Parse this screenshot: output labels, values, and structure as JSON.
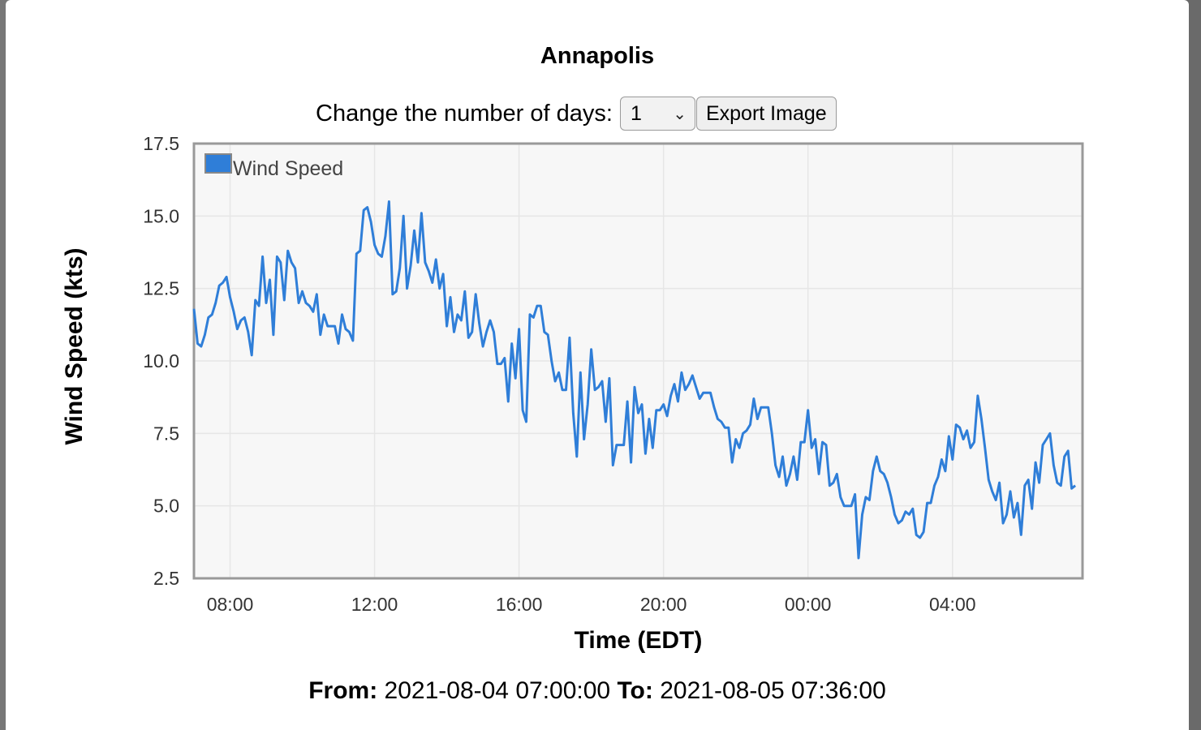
{
  "window": {
    "title": "Annapolis"
  },
  "controls": {
    "days_label": "Change the number of days:",
    "days_value": "1",
    "export_label": "Export Image"
  },
  "footer": {
    "from_label": "From:",
    "from_value": "2021-08-04 07:00:00",
    "to_label": "To:",
    "to_value": "2021-08-05 07:36:00"
  },
  "colors": {
    "series": "#2f7ed8",
    "plot_bg": "#f7f7f7",
    "plot_border": "#999999",
    "grid": "#e6e6e6"
  },
  "chart_data": {
    "type": "line",
    "title": "Annapolis",
    "xlabel": "Time (EDT)",
    "ylabel": "Wind Speed (kts)",
    "ylim": [
      2.5,
      17.5
    ],
    "xlim": [
      "2021-08-04 07:00",
      "2021-08-05 07:36"
    ],
    "yticks": [
      "2.5",
      "5.0",
      "7.5",
      "10.0",
      "12.5",
      "15.0",
      "17.5"
    ],
    "xticks": [
      {
        "t": "2021-08-04 08:00",
        "label": "08:00"
      },
      {
        "t": "2021-08-04 12:00",
        "label": "12:00"
      },
      {
        "t": "2021-08-04 16:00",
        "label": "16:00"
      },
      {
        "t": "2021-08-04 20:00",
        "label": "20:00"
      },
      {
        "t": "2021-08-05 00:00",
        "label": "00:00"
      },
      {
        "t": "2021-08-05 04:00",
        "label": "04:00"
      }
    ],
    "grid": true,
    "legend": "top-left",
    "series": [
      {
        "name": "Wind Speed",
        "points": [
          [
            "2021-08-04 07:00",
            11.8
          ],
          [
            "2021-08-04 07:06",
            10.6
          ],
          [
            "2021-08-04 07:12",
            10.5
          ],
          [
            "2021-08-04 07:18",
            10.9
          ],
          [
            "2021-08-04 07:24",
            11.5
          ],
          [
            "2021-08-04 07:30",
            11.6
          ],
          [
            "2021-08-04 07:36",
            12.0
          ],
          [
            "2021-08-04 07:42",
            12.6
          ],
          [
            "2021-08-04 07:48",
            12.7
          ],
          [
            "2021-08-04 07:54",
            12.9
          ],
          [
            "2021-08-04 08:00",
            12.2
          ],
          [
            "2021-08-04 08:06",
            11.7
          ],
          [
            "2021-08-04 08:12",
            11.1
          ],
          [
            "2021-08-04 08:18",
            11.4
          ],
          [
            "2021-08-04 08:24",
            11.5
          ],
          [
            "2021-08-04 08:30",
            11.0
          ],
          [
            "2021-08-04 08:36",
            10.2
          ],
          [
            "2021-08-04 08:42",
            12.1
          ],
          [
            "2021-08-04 08:48",
            11.9
          ],
          [
            "2021-08-04 08:54",
            13.6
          ],
          [
            "2021-08-04 09:00",
            12.0
          ],
          [
            "2021-08-04 09:06",
            12.8
          ],
          [
            "2021-08-04 09:12",
            10.9
          ],
          [
            "2021-08-04 09:18",
            13.6
          ],
          [
            "2021-08-04 09:24",
            13.4
          ],
          [
            "2021-08-04 09:30",
            12.1
          ],
          [
            "2021-08-04 09:36",
            13.8
          ],
          [
            "2021-08-04 09:42",
            13.4
          ],
          [
            "2021-08-04 09:48",
            13.2
          ],
          [
            "2021-08-04 09:54",
            12.0
          ],
          [
            "2021-08-04 10:00",
            12.4
          ],
          [
            "2021-08-04 10:06",
            12.0
          ],
          [
            "2021-08-04 10:12",
            11.9
          ],
          [
            "2021-08-04 10:18",
            11.7
          ],
          [
            "2021-08-04 10:24",
            12.3
          ],
          [
            "2021-08-04 10:30",
            10.9
          ],
          [
            "2021-08-04 10:36",
            11.6
          ],
          [
            "2021-08-04 10:42",
            11.2
          ],
          [
            "2021-08-04 10:48",
            11.2
          ],
          [
            "2021-08-04 10:54",
            11.2
          ],
          [
            "2021-08-04 11:00",
            10.6
          ],
          [
            "2021-08-04 11:06",
            11.6
          ],
          [
            "2021-08-04 11:12",
            11.1
          ],
          [
            "2021-08-04 11:18",
            11.0
          ],
          [
            "2021-08-04 11:24",
            10.7
          ],
          [
            "2021-08-04 11:30",
            13.7
          ],
          [
            "2021-08-04 11:36",
            13.8
          ],
          [
            "2021-08-04 11:42",
            15.2
          ],
          [
            "2021-08-04 11:48",
            15.3
          ],
          [
            "2021-08-04 11:54",
            14.8
          ],
          [
            "2021-08-04 12:00",
            14.0
          ],
          [
            "2021-08-04 12:06",
            13.7
          ],
          [
            "2021-08-04 12:12",
            13.6
          ],
          [
            "2021-08-04 12:18",
            14.3
          ],
          [
            "2021-08-04 12:24",
            15.5
          ],
          [
            "2021-08-04 12:30",
            12.3
          ],
          [
            "2021-08-04 12:36",
            12.4
          ],
          [
            "2021-08-04 12:42",
            13.2
          ],
          [
            "2021-08-04 12:48",
            15.0
          ],
          [
            "2021-08-04 12:54",
            12.5
          ],
          [
            "2021-08-04 13:00",
            13.3
          ],
          [
            "2021-08-04 13:06",
            14.5
          ],
          [
            "2021-08-04 13:12",
            13.4
          ],
          [
            "2021-08-04 13:18",
            15.1
          ],
          [
            "2021-08-04 13:24",
            13.4
          ],
          [
            "2021-08-04 13:30",
            13.1
          ],
          [
            "2021-08-04 13:36",
            12.7
          ],
          [
            "2021-08-04 13:42",
            13.5
          ],
          [
            "2021-08-04 13:48",
            12.5
          ],
          [
            "2021-08-04 13:54",
            13.0
          ],
          [
            "2021-08-04 14:00",
            11.2
          ],
          [
            "2021-08-04 14:06",
            12.2
          ],
          [
            "2021-08-04 14:12",
            11.0
          ],
          [
            "2021-08-04 14:18",
            11.6
          ],
          [
            "2021-08-04 14:24",
            11.4
          ],
          [
            "2021-08-04 14:30",
            12.4
          ],
          [
            "2021-08-04 14:36",
            10.8
          ],
          [
            "2021-08-04 14:42",
            11.0
          ],
          [
            "2021-08-04 14:48",
            12.3
          ],
          [
            "2021-08-04 14:54",
            11.3
          ],
          [
            "2021-08-04 15:00",
            10.5
          ],
          [
            "2021-08-04 15:06",
            11.0
          ],
          [
            "2021-08-04 15:12",
            11.4
          ],
          [
            "2021-08-04 15:18",
            11.0
          ],
          [
            "2021-08-04 15:24",
            9.9
          ],
          [
            "2021-08-04 15:30",
            9.9
          ],
          [
            "2021-08-04 15:36",
            10.1
          ],
          [
            "2021-08-04 15:42",
            8.6
          ],
          [
            "2021-08-04 15:48",
            10.6
          ],
          [
            "2021-08-04 15:54",
            9.4
          ],
          [
            "2021-08-04 16:00",
            11.1
          ],
          [
            "2021-08-04 16:06",
            8.3
          ],
          [
            "2021-08-04 16:12",
            7.9
          ],
          [
            "2021-08-04 16:18",
            11.6
          ],
          [
            "2021-08-04 16:24",
            11.5
          ],
          [
            "2021-08-04 16:30",
            11.9
          ],
          [
            "2021-08-04 16:36",
            11.9
          ],
          [
            "2021-08-04 16:42",
            11.0
          ],
          [
            "2021-08-04 16:48",
            10.9
          ],
          [
            "2021-08-04 16:54",
            10.0
          ],
          [
            "2021-08-04 17:00",
            9.3
          ],
          [
            "2021-08-04 17:06",
            9.6
          ],
          [
            "2021-08-04 17:12",
            9.0
          ],
          [
            "2021-08-04 17:18",
            9.0
          ],
          [
            "2021-08-04 17:24",
            10.8
          ],
          [
            "2021-08-04 17:30",
            8.2
          ],
          [
            "2021-08-04 17:36",
            6.7
          ],
          [
            "2021-08-04 17:42",
            9.6
          ],
          [
            "2021-08-04 17:48",
            7.3
          ],
          [
            "2021-08-04 17:54",
            8.5
          ],
          [
            "2021-08-04 18:00",
            10.4
          ],
          [
            "2021-08-04 18:06",
            9.0
          ],
          [
            "2021-08-04 18:12",
            9.1
          ],
          [
            "2021-08-04 18:18",
            9.3
          ],
          [
            "2021-08-04 18:24",
            7.9
          ],
          [
            "2021-08-04 18:30",
            9.4
          ],
          [
            "2021-08-04 18:36",
            6.4
          ],
          [
            "2021-08-04 18:42",
            7.1
          ],
          [
            "2021-08-04 18:48",
            7.1
          ],
          [
            "2021-08-04 18:54",
            7.1
          ],
          [
            "2021-08-04 19:00",
            8.6
          ],
          [
            "2021-08-04 19:06",
            6.5
          ],
          [
            "2021-08-04 19:12",
            9.1
          ],
          [
            "2021-08-04 19:18",
            8.2
          ],
          [
            "2021-08-04 19:24",
            8.5
          ],
          [
            "2021-08-04 19:30",
            6.8
          ],
          [
            "2021-08-04 19:36",
            8.0
          ],
          [
            "2021-08-04 19:42",
            7.0
          ],
          [
            "2021-08-04 19:48",
            8.3
          ],
          [
            "2021-08-04 19:54",
            8.3
          ],
          [
            "2021-08-04 20:00",
            8.5
          ],
          [
            "2021-08-04 20:06",
            8.1
          ],
          [
            "2021-08-04 20:12",
            8.8
          ],
          [
            "2021-08-04 20:18",
            9.2
          ],
          [
            "2021-08-04 20:24",
            8.6
          ],
          [
            "2021-08-04 20:30",
            9.6
          ],
          [
            "2021-08-04 20:36",
            9.0
          ],
          [
            "2021-08-04 20:42",
            9.2
          ],
          [
            "2021-08-04 20:48",
            9.5
          ],
          [
            "2021-08-04 20:54",
            9.1
          ],
          [
            "2021-08-04 21:00",
            8.7
          ],
          [
            "2021-08-04 21:06",
            8.9
          ],
          [
            "2021-08-04 21:12",
            8.9
          ],
          [
            "2021-08-04 21:18",
            8.9
          ],
          [
            "2021-08-04 21:24",
            8.4
          ],
          [
            "2021-08-04 21:30",
            8.0
          ],
          [
            "2021-08-04 21:36",
            7.9
          ],
          [
            "2021-08-04 21:42",
            7.7
          ],
          [
            "2021-08-04 21:48",
            7.7
          ],
          [
            "2021-08-04 21:54",
            6.5
          ],
          [
            "2021-08-04 22:00",
            7.3
          ],
          [
            "2021-08-04 22:06",
            7.0
          ],
          [
            "2021-08-04 22:12",
            7.5
          ],
          [
            "2021-08-04 22:18",
            7.6
          ],
          [
            "2021-08-04 22:24",
            7.8
          ],
          [
            "2021-08-04 22:30",
            8.7
          ],
          [
            "2021-08-04 22:36",
            8.0
          ],
          [
            "2021-08-04 22:42",
            8.4
          ],
          [
            "2021-08-04 22:48",
            8.4
          ],
          [
            "2021-08-04 22:54",
            8.4
          ],
          [
            "2021-08-04 23:00",
            7.5
          ],
          [
            "2021-08-04 23:06",
            6.4
          ],
          [
            "2021-08-04 23:12",
            6.0
          ],
          [
            "2021-08-04 23:18",
            6.7
          ],
          [
            "2021-08-04 23:24",
            5.7
          ],
          [
            "2021-08-04 23:30",
            6.1
          ],
          [
            "2021-08-04 23:36",
            6.7
          ],
          [
            "2021-08-04 23:42",
            5.9
          ],
          [
            "2021-08-04 23:48",
            7.2
          ],
          [
            "2021-08-04 23:54",
            7.2
          ],
          [
            "2021-08-05 00:00",
            8.3
          ],
          [
            "2021-08-05 00:06",
            7.0
          ],
          [
            "2021-08-05 00:12",
            7.3
          ],
          [
            "2021-08-05 00:18",
            6.1
          ],
          [
            "2021-08-05 00:24",
            7.2
          ],
          [
            "2021-08-05 00:30",
            7.1
          ],
          [
            "2021-08-05 00:36",
            5.7
          ],
          [
            "2021-08-05 00:42",
            5.8
          ],
          [
            "2021-08-05 00:48",
            6.1
          ],
          [
            "2021-08-05 00:54",
            5.3
          ],
          [
            "2021-08-05 01:00",
            5.0
          ],
          [
            "2021-08-05 01:06",
            5.0
          ],
          [
            "2021-08-05 01:12",
            5.0
          ],
          [
            "2021-08-05 01:18",
            5.4
          ],
          [
            "2021-08-05 01:24",
            3.2
          ],
          [
            "2021-08-05 01:30",
            4.7
          ],
          [
            "2021-08-05 01:36",
            5.3
          ],
          [
            "2021-08-05 01:42",
            5.2
          ],
          [
            "2021-08-05 01:48",
            6.2
          ],
          [
            "2021-08-05 01:54",
            6.7
          ],
          [
            "2021-08-05 02:00",
            6.2
          ],
          [
            "2021-08-05 02:06",
            6.1
          ],
          [
            "2021-08-05 02:12",
            5.8
          ],
          [
            "2021-08-05 02:18",
            5.3
          ],
          [
            "2021-08-05 02:24",
            4.7
          ],
          [
            "2021-08-05 02:30",
            4.4
          ],
          [
            "2021-08-05 02:36",
            4.5
          ],
          [
            "2021-08-05 02:42",
            4.8
          ],
          [
            "2021-08-05 02:48",
            4.7
          ],
          [
            "2021-08-05 02:54",
            4.9
          ],
          [
            "2021-08-05 03:00",
            4.0
          ],
          [
            "2021-08-05 03:06",
            3.9
          ],
          [
            "2021-08-05 03:12",
            4.1
          ],
          [
            "2021-08-05 03:18",
            5.1
          ],
          [
            "2021-08-05 03:24",
            5.1
          ],
          [
            "2021-08-05 03:30",
            5.7
          ],
          [
            "2021-08-05 03:36",
            6.0
          ],
          [
            "2021-08-05 03:42",
            6.6
          ],
          [
            "2021-08-05 03:48",
            6.2
          ],
          [
            "2021-08-05 03:54",
            7.4
          ],
          [
            "2021-08-05 04:00",
            6.6
          ],
          [
            "2021-08-05 04:06",
            7.8
          ],
          [
            "2021-08-05 04:12",
            7.7
          ],
          [
            "2021-08-05 04:18",
            7.3
          ],
          [
            "2021-08-05 04:24",
            7.6
          ],
          [
            "2021-08-05 04:30",
            7.0
          ],
          [
            "2021-08-05 04:36",
            7.2
          ],
          [
            "2021-08-05 04:42",
            8.8
          ],
          [
            "2021-08-05 04:48",
            8.0
          ],
          [
            "2021-08-05 04:54",
            7.0
          ],
          [
            "2021-08-05 05:00",
            5.9
          ],
          [
            "2021-08-05 05:06",
            5.5
          ],
          [
            "2021-08-05 05:12",
            5.2
          ],
          [
            "2021-08-05 05:18",
            5.8
          ],
          [
            "2021-08-05 05:24",
            4.4
          ],
          [
            "2021-08-05 05:30",
            4.7
          ],
          [
            "2021-08-05 05:36",
            5.5
          ],
          [
            "2021-08-05 05:42",
            4.6
          ],
          [
            "2021-08-05 05:48",
            5.1
          ],
          [
            "2021-08-05 05:54",
            4.0
          ],
          [
            "2021-08-05 06:00",
            5.7
          ],
          [
            "2021-08-05 06:06",
            5.9
          ],
          [
            "2021-08-05 06:12",
            4.9
          ],
          [
            "2021-08-05 06:18",
            6.5
          ],
          [
            "2021-08-05 06:24",
            5.8
          ],
          [
            "2021-08-05 06:30",
            7.1
          ],
          [
            "2021-08-05 06:36",
            7.3
          ],
          [
            "2021-08-05 06:42",
            7.5
          ],
          [
            "2021-08-05 06:48",
            6.4
          ],
          [
            "2021-08-05 06:54",
            5.8
          ],
          [
            "2021-08-05 07:00",
            5.7
          ],
          [
            "2021-08-05 07:06",
            6.7
          ],
          [
            "2021-08-05 07:12",
            6.9
          ],
          [
            "2021-08-05 07:18",
            5.6
          ],
          [
            "2021-08-05 07:24",
            5.7
          ]
        ]
      }
    ]
  }
}
